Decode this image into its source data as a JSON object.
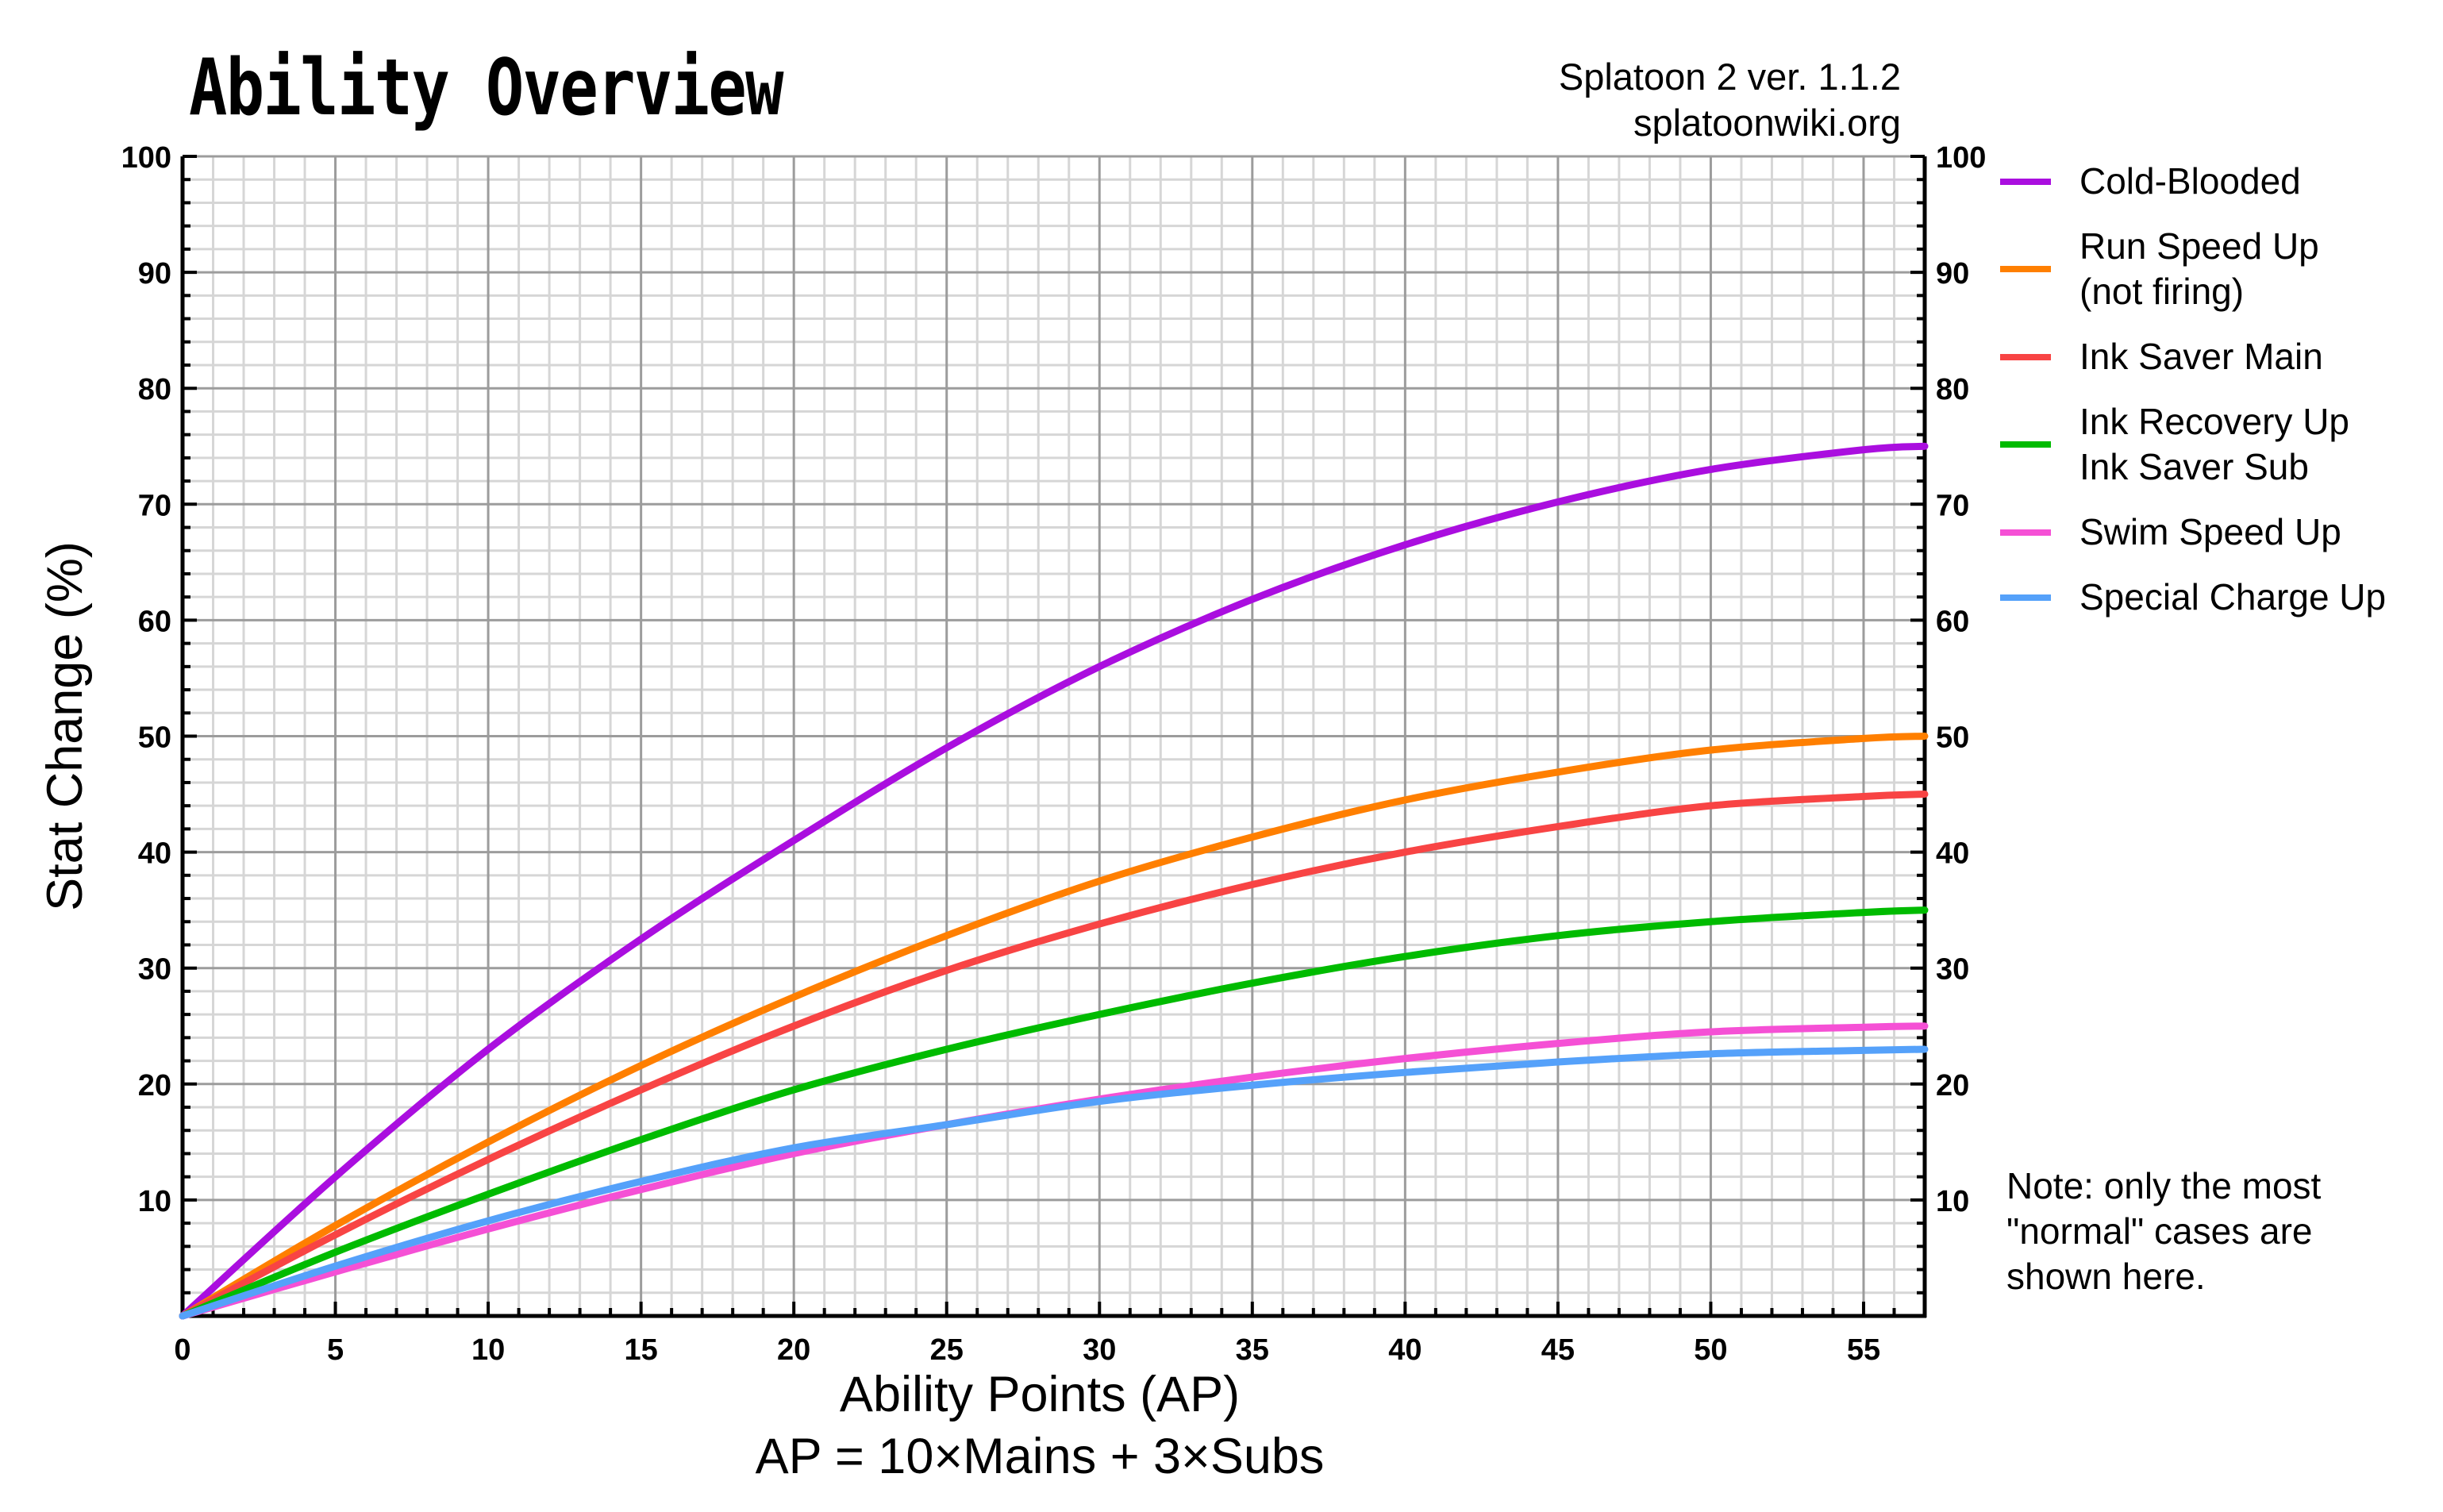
{
  "header": {
    "title": "Ability Overview",
    "source_line1": "Splatoon 2 ver. 1.1.2",
    "source_line2": "splatoonwiki.org"
  },
  "axes": {
    "xlabel_line1": "Ability Points (AP)",
    "xlabel_line2": "AP = 10×Mains + 3×Subs",
    "ylabel": "Stat Change (%)"
  },
  "legend": {
    "items": [
      {
        "label": "Cold-Blooded",
        "color": "#aa0edf"
      },
      {
        "label": "Run Speed Up\n(not firing)",
        "color": "#ff7f00"
      },
      {
        "label": "Ink Saver Main",
        "color": "#f84444"
      },
      {
        "label": "Ink Recovery Up\nInk Saver Sub",
        "color": "#00bb00"
      },
      {
        "label": "Swim Speed Up",
        "color": "#f550d5"
      },
      {
        "label": "Special Charge Up",
        "color": "#55a1fa"
      }
    ]
  },
  "note": "Note: only the most \"normal\" cases are shown here.",
  "chart_data": {
    "type": "line",
    "title": "Ability Overview",
    "xlabel": "Ability Points (AP)",
    "ylabel": "Stat Change (%)",
    "xlim": [
      0,
      57
    ],
    "ylim": [
      0,
      100
    ],
    "x_ticks": [
      0,
      5,
      10,
      15,
      20,
      25,
      30,
      35,
      40,
      45,
      50,
      55
    ],
    "y_ticks_left": [
      10,
      20,
      30,
      40,
      50,
      60,
      70,
      80,
      90,
      100
    ],
    "y_ticks_right": [
      10,
      20,
      30,
      40,
      50,
      60,
      70,
      80,
      90,
      100
    ],
    "grid": true,
    "legend_position": "right",
    "x": [
      0,
      5,
      10,
      15,
      20,
      25,
      30,
      35,
      40,
      45,
      50,
      55,
      57
    ],
    "series": [
      {
        "name": "Cold-Blooded",
        "color": "#aa0edf",
        "values": [
          0,
          12,
          23,
          32.5,
          41,
          49,
          56,
          61.8,
          66.5,
          70.2,
          73,
          74.7,
          75
        ]
      },
      {
        "name": "Run Speed Up (not firing)",
        "color": "#ff7f00",
        "values": [
          0,
          7.8,
          15,
          21.6,
          27.5,
          32.8,
          37.5,
          41.3,
          44.5,
          46.9,
          48.8,
          49.8,
          50
        ]
      },
      {
        "name": "Ink Saver Main",
        "color": "#f84444",
        "values": [
          0,
          7,
          13.5,
          19.5,
          25,
          29.8,
          33.8,
          37.2,
          40,
          42.2,
          44,
          44.8,
          45
        ]
      },
      {
        "name": "Ink Recovery Up / Ink Saver Sub",
        "color": "#00bb00",
        "values": [
          0,
          5.5,
          10.5,
          15.2,
          19.5,
          23,
          26,
          28.7,
          31,
          32.8,
          34,
          34.8,
          35
        ]
      },
      {
        "name": "Swim Speed Up",
        "color": "#f550d5",
        "values": [
          0,
          3.8,
          7.5,
          10.9,
          14,
          16.5,
          18.7,
          20.6,
          22.2,
          23.5,
          24.5,
          24.9,
          25
        ]
      },
      {
        "name": "Special Charge Up",
        "color": "#55a1fa",
        "values": [
          0,
          4.3,
          8.2,
          11.6,
          14.5,
          16.5,
          18.5,
          19.9,
          21,
          21.9,
          22.6,
          22.9,
          23
        ]
      }
    ]
  }
}
